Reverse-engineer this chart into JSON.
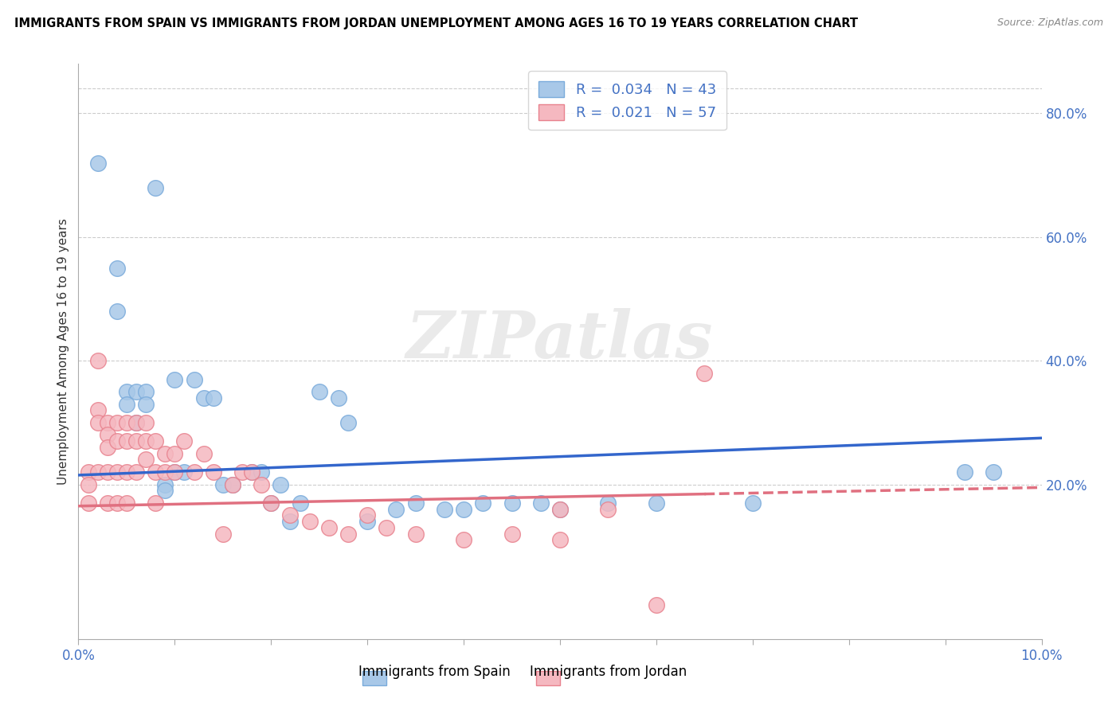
{
  "title": "IMMIGRANTS FROM SPAIN VS IMMIGRANTS FROM JORDAN UNEMPLOYMENT AMONG AGES 16 TO 19 YEARS CORRELATION CHART",
  "source": "Source: ZipAtlas.com",
  "ylabel": "Unemployment Among Ages 16 to 19 years",
  "r_spain": 0.034,
  "n_spain": 43,
  "r_jordan": 0.021,
  "n_jordan": 57,
  "spain_color": "#a8c8e8",
  "spain_edge": "#7aabdb",
  "jordan_color": "#f5b8c0",
  "jordan_edge": "#e8828e",
  "trend_spain_color": "#3366cc",
  "trend_jordan_color": "#e07080",
  "watermark": "ZIPatlas",
  "right_yticks": [
    0.2,
    0.4,
    0.6,
    0.8
  ],
  "right_ytick_labels": [
    "20.0%",
    "40.0%",
    "60.0%",
    "80.0%"
  ],
  "xlim": [
    0.0,
    0.1
  ],
  "ylim": [
    -0.05,
    0.88
  ],
  "top_gridline": 0.84,
  "trend_spain_x0": 0.0,
  "trend_spain_y0": 0.215,
  "trend_spain_x1": 0.1,
  "trend_spain_y1": 0.275,
  "trend_jordan_x0": 0.0,
  "trend_jordan_y0": 0.165,
  "trend_jordan_x1": 0.1,
  "trend_jordan_y1": 0.195,
  "trend_jordan_solid_end": 0.065,
  "spain_x": [
    0.002,
    0.004,
    0.004,
    0.005,
    0.005,
    0.006,
    0.006,
    0.007,
    0.007,
    0.008,
    0.009,
    0.009,
    0.01,
    0.01,
    0.011,
    0.012,
    0.013,
    0.014,
    0.015,
    0.016,
    0.018,
    0.019,
    0.02,
    0.021,
    0.022,
    0.023,
    0.025,
    0.027,
    0.028,
    0.03,
    0.033,
    0.035,
    0.038,
    0.04,
    0.042,
    0.045,
    0.048,
    0.05,
    0.055,
    0.06,
    0.07,
    0.092,
    0.095
  ],
  "spain_y": [
    0.72,
    0.55,
    0.48,
    0.35,
    0.33,
    0.35,
    0.3,
    0.35,
    0.33,
    0.68,
    0.2,
    0.19,
    0.37,
    0.22,
    0.22,
    0.37,
    0.34,
    0.34,
    0.2,
    0.2,
    0.22,
    0.22,
    0.17,
    0.2,
    0.14,
    0.17,
    0.35,
    0.34,
    0.3,
    0.14,
    0.16,
    0.17,
    0.16,
    0.16,
    0.17,
    0.17,
    0.17,
    0.16,
    0.17,
    0.17,
    0.17,
    0.22,
    0.22
  ],
  "jordan_x": [
    0.001,
    0.001,
    0.001,
    0.002,
    0.002,
    0.002,
    0.002,
    0.003,
    0.003,
    0.003,
    0.003,
    0.003,
    0.004,
    0.004,
    0.004,
    0.004,
    0.005,
    0.005,
    0.005,
    0.005,
    0.006,
    0.006,
    0.006,
    0.007,
    0.007,
    0.007,
    0.008,
    0.008,
    0.008,
    0.009,
    0.009,
    0.01,
    0.01,
    0.011,
    0.012,
    0.013,
    0.014,
    0.015,
    0.016,
    0.017,
    0.018,
    0.019,
    0.02,
    0.022,
    0.024,
    0.026,
    0.028,
    0.03,
    0.032,
    0.035,
    0.04,
    0.045,
    0.05,
    0.055,
    0.06,
    0.065,
    0.05
  ],
  "jordan_y": [
    0.22,
    0.2,
    0.17,
    0.4,
    0.32,
    0.3,
    0.22,
    0.3,
    0.28,
    0.26,
    0.22,
    0.17,
    0.3,
    0.27,
    0.22,
    0.17,
    0.3,
    0.27,
    0.22,
    0.17,
    0.3,
    0.27,
    0.22,
    0.3,
    0.27,
    0.24,
    0.27,
    0.22,
    0.17,
    0.25,
    0.22,
    0.25,
    0.22,
    0.27,
    0.22,
    0.25,
    0.22,
    0.12,
    0.2,
    0.22,
    0.22,
    0.2,
    0.17,
    0.15,
    0.14,
    0.13,
    0.12,
    0.15,
    0.13,
    0.12,
    0.11,
    0.12,
    0.11,
    0.16,
    0.005,
    0.38,
    0.16
  ]
}
